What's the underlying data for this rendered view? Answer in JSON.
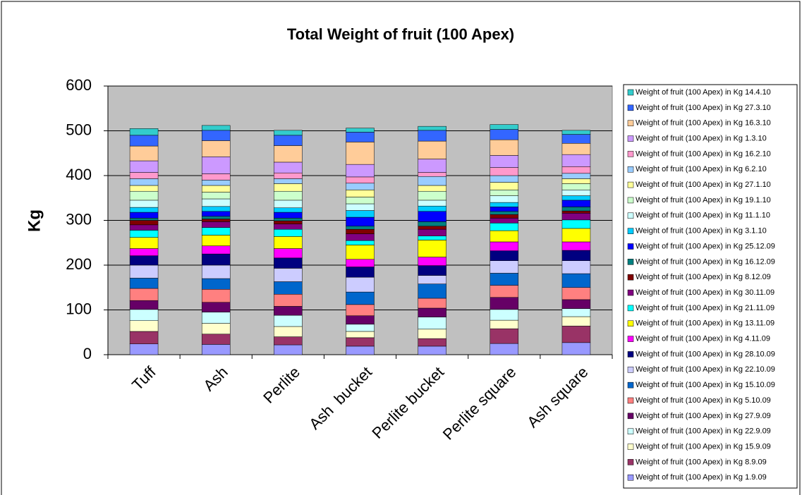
{
  "chart_data": {
    "type": "bar",
    "stacked": true,
    "title": "Total Weight of fruit (100 Apex)",
    "y_label": "Kg",
    "categories": [
      "Tuff",
      "Ash",
      "Perlite",
      "Ash  bucket",
      "Perlite bucket",
      "Perlite square",
      "Ash square"
    ],
    "ylim": [
      0,
      600
    ],
    "yticks": [
      0,
      100,
      200,
      300,
      400,
      500,
      600
    ],
    "grid": true,
    "legend": "right",
    "series": [
      {
        "name": "Weight of fruit (100 Apex) in Kg 1.9.09",
        "color": "#9999FF",
        "values": [
          24,
          23,
          22,
          19,
          19,
          25,
          27
        ]
      },
      {
        "name": "Weight of fruit (100 Apex) in Kg 8.9.09",
        "color": "#993366",
        "values": [
          28,
          23,
          18,
          19,
          17,
          33,
          37
        ]
      },
      {
        "name": "Weight of fruit (100 Apex) in Kg 15.9.09",
        "color": "#FFFFCC",
        "values": [
          24,
          24,
          23,
          14,
          21,
          19,
          21
        ]
      },
      {
        "name": "Weight of fruit (100 Apex) in Kg 22.9.09",
        "color": "#CCFFFF",
        "values": [
          25,
          25,
          25,
          16,
          27,
          24,
          18
        ]
      },
      {
        "name": "Weight of fruit (100 Apex) in Kg 27.9.09",
        "color": "#660066",
        "values": [
          20,
          22,
          20,
          19,
          20,
          27,
          20
        ]
      },
      {
        "name": "Weight of fruit (100 Apex) in Kg 5.10.09",
        "color": "#FF8080",
        "values": [
          27,
          29,
          27,
          25,
          22,
          27,
          27
        ]
      },
      {
        "name": "Weight of fruit (100 Apex) in Kg 15.10.09",
        "color": "#0066CC",
        "values": [
          23,
          24,
          28,
          28,
          32,
          27,
          31
        ]
      },
      {
        "name": "Weight of fruit (100 Apex) in Kg 22.10.09",
        "color": "#CCCCFF",
        "values": [
          29,
          30,
          30,
          33,
          19,
          28,
          29
        ]
      },
      {
        "name": "Weight of fruit (100 Apex) in Kg 28.10.09",
        "color": "#000080",
        "values": [
          21,
          25,
          23,
          23,
          22,
          22,
          23
        ]
      },
      {
        "name": "Weight of fruit (100 Apex) in Kg 4.11.09",
        "color": "#FF00FF",
        "values": [
          16,
          18,
          21,
          17,
          19,
          20,
          19
        ]
      },
      {
        "name": "Weight of fruit (100 Apex) in Kg 13.11.09",
        "color": "#FFFF00",
        "values": [
          25,
          24,
          27,
          32,
          38,
          25,
          30
        ]
      },
      {
        "name": "Weight of fruit (100 Apex) in Kg 21.11.09",
        "color": "#00FFFF",
        "values": [
          16,
          17,
          16,
          10,
          9,
          17,
          19
        ]
      },
      {
        "name": "Weight of fruit (100 Apex) in Kg 30.11.09",
        "color": "#800080",
        "values": [
          12,
          13,
          12,
          15,
          15,
          11,
          15
        ]
      },
      {
        "name": "Weight of fruit (100 Apex) in Kg 8.12.09",
        "color": "#800000",
        "values": [
          10,
          6,
          7,
          10,
          7,
          8,
          5
        ]
      },
      {
        "name": "Weight of fruit (100 Apex) in Kg 16.12.09",
        "color": "#008080",
        "values": [
          5,
          6,
          6,
          7,
          10,
          7,
          9
        ]
      },
      {
        "name": "Weight of fruit (100 Apex) in Kg 25.12.09",
        "color": "#0000FF",
        "values": [
          13,
          11,
          13,
          20,
          23,
          10,
          15
        ]
      },
      {
        "name": "Weight of fruit (100 Apex) in Kg 3.1.10",
        "color": "#00CCFF",
        "values": [
          11,
          11,
          10,
          15,
          12,
          10,
          10
        ]
      },
      {
        "name": "Weight of fruit (100 Apex) in Kg 11.1.10",
        "color": "#CCFFFF",
        "values": [
          16,
          17,
          17,
          15,
          13,
          15,
          13
        ]
      },
      {
        "name": "Weight of fruit (100 Apex) in Kg 19.1.10",
        "color": "#CCFFCC",
        "values": [
          20,
          15,
          20,
          15,
          20,
          13,
          14
        ]
      },
      {
        "name": "Weight of fruit (100 Apex) in Kg 27.1.10",
        "color": "#FFFF99",
        "values": [
          13,
          15,
          17,
          16,
          13,
          17,
          11
        ]
      },
      {
        "name": "Weight of fruit (100 Apex) in Kg 6.2.10",
        "color": "#99CCFF",
        "values": [
          15,
          12,
          11,
          15,
          20,
          15,
          12
        ]
      },
      {
        "name": "Weight of fruit (100 Apex) in Kg 16.2.10",
        "color": "#FF99CC",
        "values": [
          14,
          14,
          13,
          14,
          9,
          18,
          15
        ]
      },
      {
        "name": "Weight of fruit (100 Apex) in Kg 1.3.10",
        "color": "#CC99FF",
        "values": [
          26,
          38,
          24,
          28,
          30,
          27,
          27
        ]
      },
      {
        "name": "Weight of fruit (100 Apex) in Kg 16.3.10",
        "color": "#FFCC99",
        "values": [
          33,
          36,
          37,
          50,
          40,
          35,
          25
        ]
      },
      {
        "name": "Weight of fruit (100 Apex) in Kg 27.3.10",
        "color": "#3366FF",
        "values": [
          24,
          23,
          23,
          22,
          24,
          23,
          20
        ]
      },
      {
        "name": "Weight of fruit (100 Apex) in Kg 14.4.10",
        "color": "#33CCCC",
        "values": [
          15,
          11,
          11,
          9,
          9,
          11,
          9
        ]
      }
    ]
  }
}
